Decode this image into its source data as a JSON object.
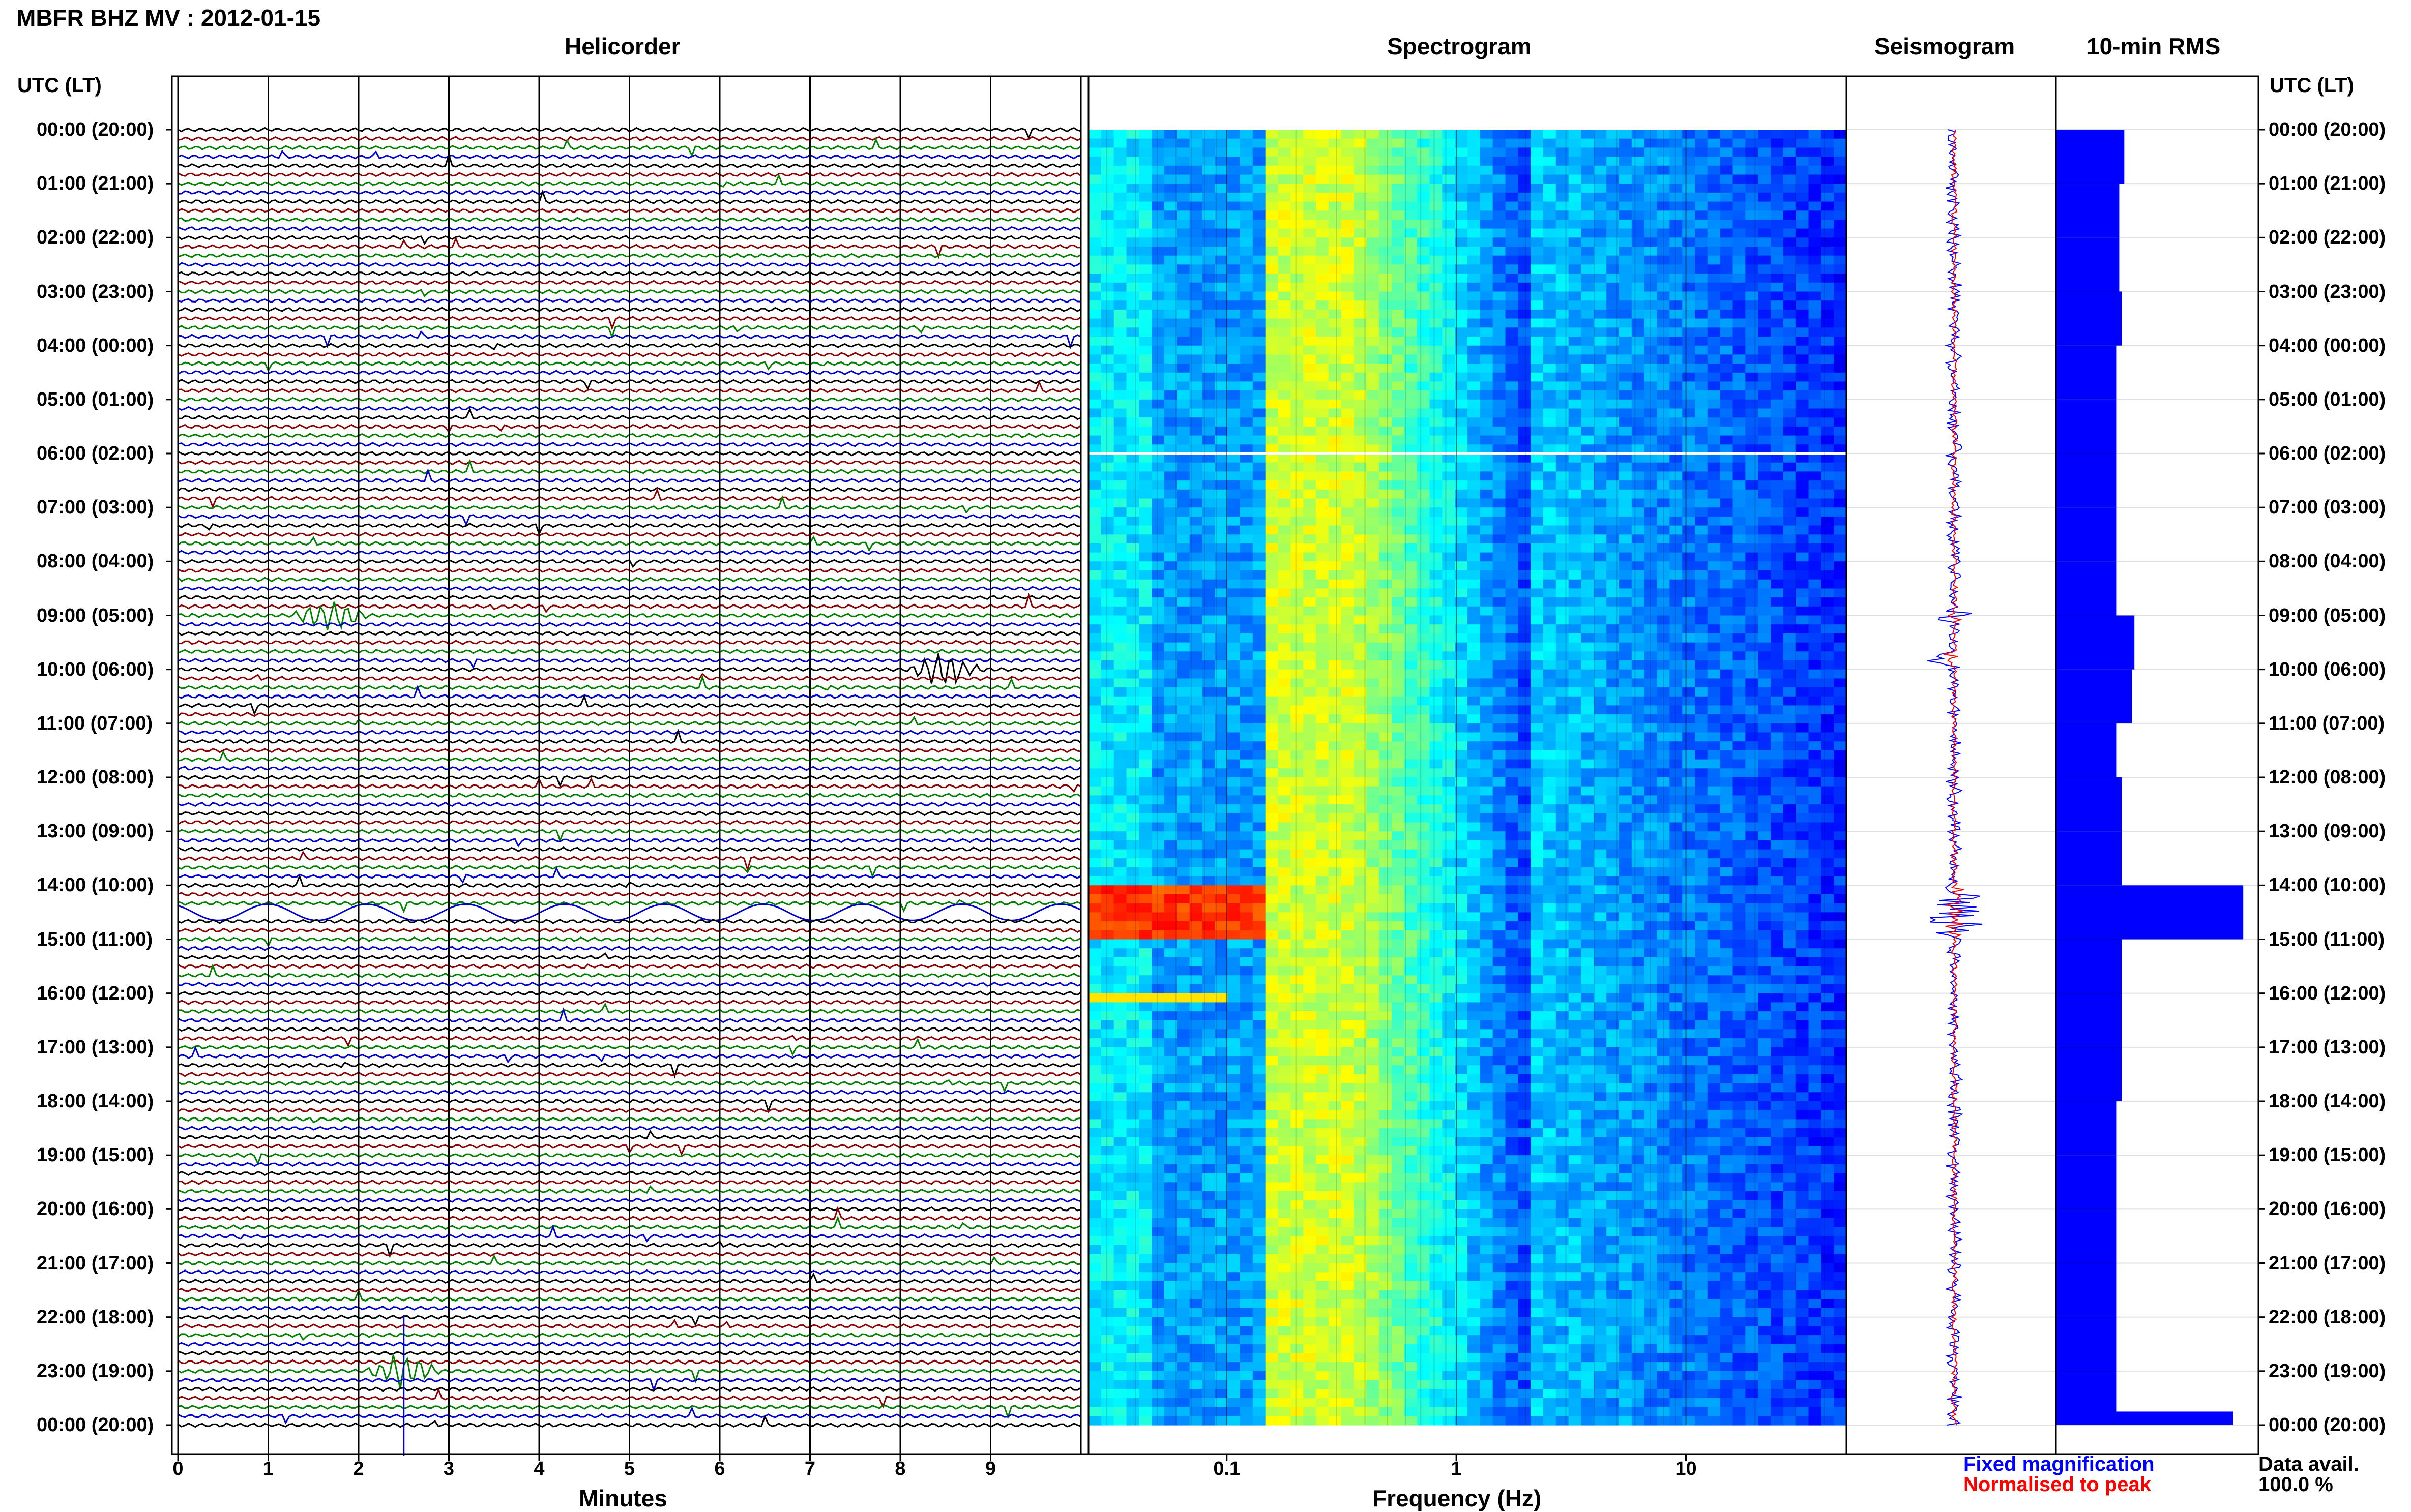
{
  "header": {
    "title": "MBFR BHZ MV : 2012-01-15"
  },
  "panels": {
    "helicorder": "Helicorder",
    "spectrogram": "Spectrogram",
    "seismogram": "Seismogram",
    "rms": "10-min RMS"
  },
  "axes": {
    "utc_label_left": "UTC (LT)",
    "utc_label_right": "UTC (LT)",
    "minutes_label": "Minutes",
    "frequency_label": "Frequency (Hz)",
    "minute_ticks": [
      "0",
      "1",
      "2",
      "3",
      "4",
      "5",
      "6",
      "7",
      "8",
      "9"
    ],
    "freq_ticks": [
      "0.1",
      "1",
      "10"
    ]
  },
  "hours": [
    "00:00 (20:00)",
    "01:00 (21:00)",
    "02:00 (22:00)",
    "03:00 (23:00)",
    "04:00 (00:00)",
    "05:00 (01:00)",
    "06:00 (02:00)",
    "07:00 (03:00)",
    "08:00 (04:00)",
    "09:00 (05:00)",
    "10:00 (06:00)",
    "11:00 (07:00)",
    "12:00 (08:00)",
    "13:00 (09:00)",
    "14:00 (10:00)",
    "15:00 (11:00)",
    "16:00 (12:00)",
    "17:00 (13:00)",
    "18:00 (14:00)",
    "19:00 (15:00)",
    "20:00 (16:00)",
    "21:00 (17:00)",
    "22:00 (18:00)",
    "23:00 (19:00)",
    "00:00 (20:00)"
  ],
  "legend": {
    "fixed": "Fixed magnification",
    "normalised": "Normalised to peak"
  },
  "data_avail": {
    "label": "Data avail.",
    "value": "100.0 %"
  },
  "colors": {
    "trace_cycle": [
      "#000000",
      "#8b0000",
      "#008000",
      "#0000cd"
    ],
    "rms_bar": "#0000ff",
    "seis_fixed": "#0000ff",
    "seis_norm": "#ff0000",
    "legend_fixed": "#0000ff",
    "legend_norm": "#ff0000"
  },
  "chart_data": [
    {
      "type": "line",
      "title": "Helicorder",
      "xlabel": "Minutes",
      "x_range": [
        0,
        10
      ],
      "rows": 145,
      "rows_per_hour": 6,
      "y_categories": [
        "00:00",
        "01:00",
        "02:00",
        "03:00",
        "04:00",
        "05:00",
        "06:00",
        "07:00",
        "08:00",
        "09:00",
        "10:00",
        "11:00",
        "12:00",
        "13:00",
        "14:00",
        "15:00",
        "16:00",
        "17:00",
        "18:00",
        "19:00",
        "20:00",
        "21:00",
        "22:00",
        "23:00",
        "00:00"
      ],
      "notable_events": [
        {
          "time_utc": "09:00",
          "minute": 1.7
        },
        {
          "time_utc": "10:00",
          "minute": 8.5
        },
        {
          "time_utc": "14:30",
          "minute_range": [
            0,
            10
          ]
        },
        {
          "time_utc": "23:00",
          "minute": 2.5
        }
      ]
    },
    {
      "type": "heatmap",
      "title": "Spectrogram",
      "xlabel": "Frequency (Hz)",
      "x_scale": "log",
      "x_range": [
        0.025,
        50
      ],
      "x_ticks": [
        0.1,
        1,
        10
      ],
      "rows_utc_hours": [
        0,
        24
      ],
      "dominant_band_hz": [
        0.15,
        0.35
      ],
      "high_energy_event": {
        "time_utc": "14:30",
        "freq_hz": [
          0.025,
          0.15
        ]
      }
    },
    {
      "type": "line",
      "title": "Seismogram",
      "series": [
        {
          "name": "Fixed magnification",
          "color": "#0000ff"
        },
        {
          "name": "Normalised to peak",
          "color": "#ff0000"
        }
      ]
    },
    {
      "type": "bar",
      "title": "10-min RMS",
      "orientation": "horizontal",
      "hours": [
        0,
        1,
        2,
        3,
        4,
        5,
        6,
        7,
        8,
        9,
        10,
        11,
        12,
        13,
        14,
        15,
        16,
        17,
        18,
        19,
        20,
        21,
        22,
        23,
        24
      ],
      "values": [
        1.35,
        1.25,
        1.25,
        1.3,
        1.2,
        1.2,
        1.2,
        1.2,
        1.2,
        1.55,
        1.5,
        1.2,
        1.3,
        1.3,
        3.7,
        1.3,
        1.3,
        1.3,
        1.2,
        1.2,
        1.2,
        1.2,
        1.2,
        1.2,
        3.5
      ]
    }
  ]
}
